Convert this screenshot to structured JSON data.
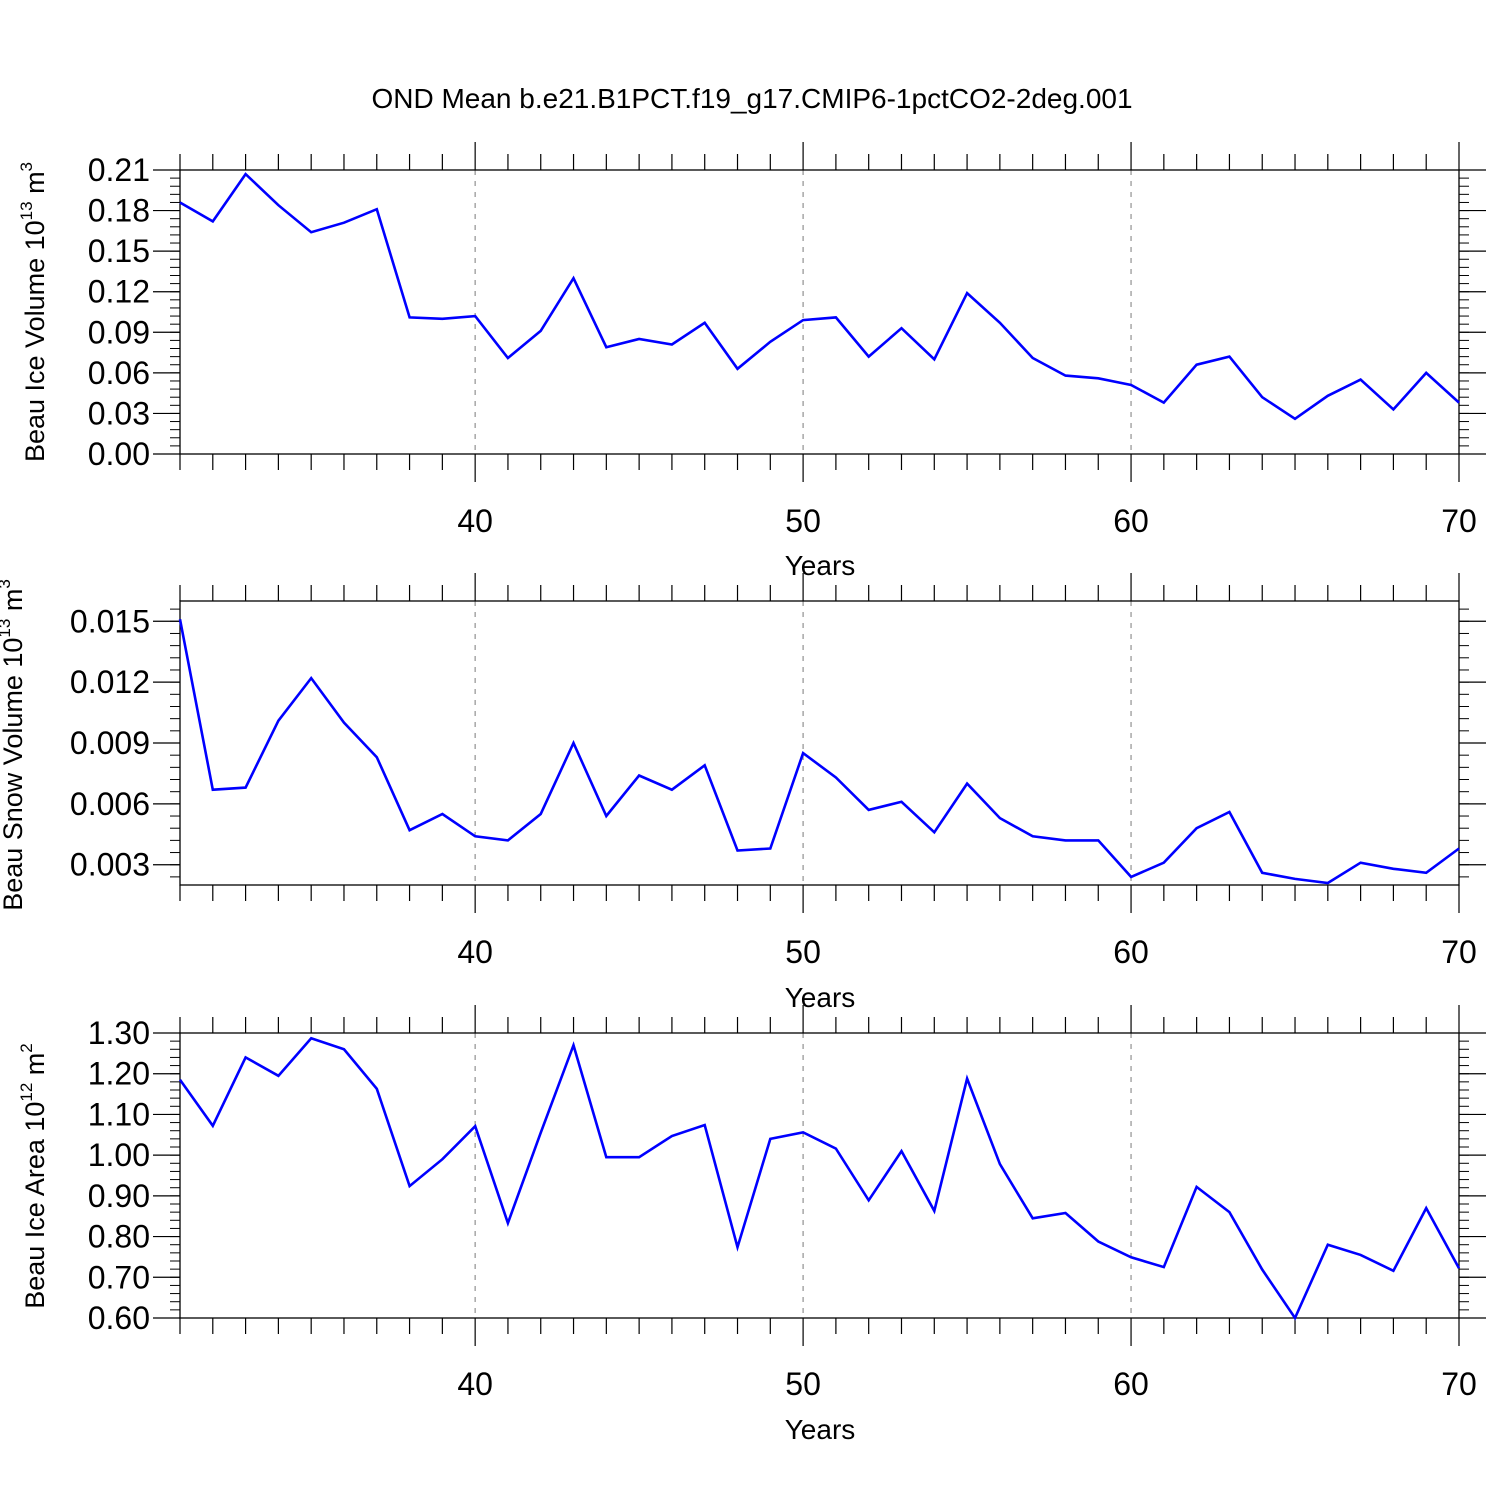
{
  "title": "OND Mean b.e21.B1PCT.f19_g17.CMIP6-1pctCO2-2deg.001",
  "colors": {
    "line": "#0000ff",
    "axis": "#000000",
    "grid": "#999999"
  },
  "chart_data": [
    {
      "type": "line",
      "ylabel": {
        "main": "Beau Ice Volume 10",
        "exp": "13",
        "unit": " m",
        "unit_exp": "3"
      },
      "xlabel": "Years",
      "xlim": [
        31,
        70
      ],
      "ylim": [
        0.0,
        0.21
      ],
      "x_ticks": [
        "40",
        "50",
        "60",
        "70"
      ],
      "y_ticks": [
        "0.00",
        "0.03",
        "0.06",
        "0.09",
        "0.12",
        "0.15",
        "0.18",
        "0.21"
      ],
      "grid": "vertical dashed at x ticks",
      "x": [
        31,
        32,
        33,
        34,
        35,
        36,
        37,
        38,
        39,
        40,
        41,
        42,
        43,
        44,
        45,
        46,
        47,
        48,
        49,
        50,
        51,
        52,
        53,
        54,
        55,
        56,
        57,
        58,
        59,
        60,
        61,
        62,
        63,
        64,
        65,
        66,
        67,
        68,
        69,
        70
      ],
      "values": [
        0.186,
        0.172,
        0.207,
        0.184,
        0.164,
        0.171,
        0.181,
        0.101,
        0.1,
        0.102,
        0.071,
        0.091,
        0.13,
        0.079,
        0.085,
        0.081,
        0.097,
        0.063,
        0.083,
        0.099,
        0.101,
        0.072,
        0.093,
        0.07,
        0.119,
        0.097,
        0.071,
        0.058,
        0.056,
        0.051,
        0.038,
        0.066,
        0.072,
        0.042,
        0.026,
        0.043,
        0.055,
        0.033,
        0.06,
        0.038
      ]
    },
    {
      "type": "line",
      "ylabel": {
        "main": "Beau Snow Volume 10",
        "exp": "13",
        "unit": " m",
        "unit_exp": "3"
      },
      "xlabel": "Years",
      "xlim": [
        31,
        70
      ],
      "ylim": [
        0.002,
        0.016
      ],
      "x_ticks": [
        "40",
        "50",
        "60",
        "70"
      ],
      "y_ticks": [
        "0.003",
        "0.006",
        "0.009",
        "0.012",
        "0.015"
      ],
      "grid": "vertical dashed at x ticks",
      "x": [
        31,
        32,
        33,
        34,
        35,
        36,
        37,
        38,
        39,
        40,
        41,
        42,
        43,
        44,
        45,
        46,
        47,
        48,
        49,
        50,
        51,
        52,
        53,
        54,
        55,
        56,
        57,
        58,
        59,
        60,
        61,
        62,
        63,
        64,
        65,
        66,
        67,
        68,
        69,
        70
      ],
      "values": [
        0.0151,
        0.0067,
        0.0068,
        0.0101,
        0.0122,
        0.01,
        0.0083,
        0.0047,
        0.0055,
        0.0044,
        0.0042,
        0.0055,
        0.009,
        0.0054,
        0.0074,
        0.0067,
        0.0079,
        0.0037,
        0.0038,
        0.0085,
        0.0073,
        0.0057,
        0.0061,
        0.0046,
        0.007,
        0.0053,
        0.0044,
        0.0042,
        0.0042,
        0.0024,
        0.0031,
        0.0048,
        0.0056,
        0.0026,
        0.0023,
        0.0021,
        0.0031,
        0.0028,
        0.0026,
        0.0038
      ]
    },
    {
      "type": "line",
      "ylabel": {
        "main": "Beau Ice Area 10",
        "exp": "12",
        "unit": " m",
        "unit_exp": "2"
      },
      "xlabel": "Years",
      "xlim": [
        31,
        70
      ],
      "ylim": [
        0.6,
        1.3
      ],
      "x_ticks": [
        "40",
        "50",
        "60",
        "70"
      ],
      "y_ticks": [
        "0.60",
        "0.70",
        "0.80",
        "0.90",
        "1.00",
        "1.10",
        "1.20",
        "1.30"
      ],
      "grid": "vertical dashed at x ticks",
      "x": [
        31,
        32,
        33,
        34,
        35,
        36,
        37,
        38,
        39,
        40,
        41,
        42,
        43,
        44,
        45,
        46,
        47,
        48,
        49,
        50,
        51,
        52,
        53,
        54,
        55,
        56,
        57,
        58,
        59,
        60,
        61,
        62,
        63,
        64,
        65,
        66,
        67,
        68,
        69,
        70
      ],
      "values": [
        1.185,
        1.072,
        1.24,
        1.195,
        1.287,
        1.26,
        1.163,
        0.924,
        0.99,
        1.071,
        0.833,
        1.055,
        1.27,
        0.995,
        0.995,
        1.047,
        1.074,
        0.774,
        1.04,
        1.056,
        1.016,
        0.889,
        1.01,
        0.863,
        1.188,
        0.978,
        0.845,
        0.858,
        0.788,
        0.749,
        0.725,
        0.922,
        0.86,
        0.719,
        0.6,
        0.78,
        0.755,
        0.716,
        0.87,
        0.722
      ]
    }
  ]
}
